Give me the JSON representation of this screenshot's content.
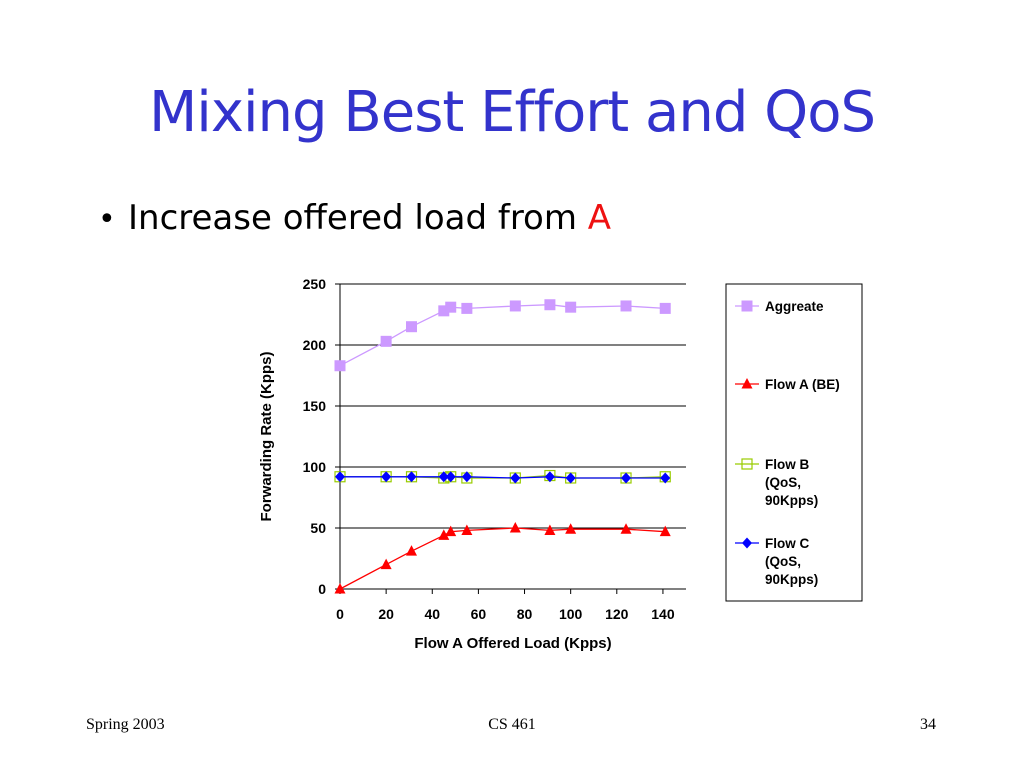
{
  "slide": {
    "title": "Mixing Best Effort and QoS",
    "bullet_text": "Increase offered load from ",
    "bullet_accent": "A",
    "bullet_symbol": "•",
    "accent_color": "#ee1111",
    "title_color": "#3333cc"
  },
  "footer": {
    "left": "Spring 2003",
    "center": "CS 461",
    "right": "34"
  },
  "chart_data": {
    "type": "line",
    "xlabel": "Flow A Offered Load (Kpps)",
    "ylabel": "Forwarding Rate (Kpps)",
    "xlim": [
      0,
      150
    ],
    "ylim": [
      0,
      250
    ],
    "xticks": [
      "0",
      "20",
      "40",
      "60",
      "80",
      "100",
      "120",
      "140"
    ],
    "yticks": [
      "0",
      "50",
      "100",
      "150",
      "200",
      "250"
    ],
    "grid": "horizontal",
    "legend_position": "right",
    "series": [
      {
        "name": "Aggreate",
        "marker": "square",
        "color": "#cc99ff",
        "x": [
          0,
          20,
          31,
          45,
          48,
          55,
          76,
          91,
          100,
          124,
          141
        ],
        "y": [
          183,
          203,
          215,
          228,
          231,
          230,
          232,
          233,
          231,
          232,
          230
        ]
      },
      {
        "name": "Flow A (BE)",
        "marker": "triangle",
        "color": "#ff0000",
        "x": [
          0,
          20,
          31,
          45,
          48,
          55,
          76,
          91,
          100,
          124,
          141
        ],
        "y": [
          0,
          20,
          31,
          44,
          47,
          48,
          50,
          48,
          49,
          49,
          47
        ]
      },
      {
        "name": "Flow B\n(QoS,\n90Kpps)",
        "marker": "hollow-square",
        "color": "#99cc00",
        "x": [
          0,
          20,
          31,
          45,
          48,
          55,
          76,
          91,
          100,
          124,
          141
        ],
        "y": [
          92,
          92,
          92,
          91,
          92,
          91,
          91,
          93,
          91,
          91,
          92
        ]
      },
      {
        "name": "Flow C\n(QoS,\n90Kpps)",
        "marker": "diamond",
        "color": "#0000ff",
        "x": [
          0,
          20,
          31,
          45,
          48,
          55,
          76,
          91,
          100,
          124,
          141
        ],
        "y": [
          92,
          92,
          92,
          92,
          92,
          92,
          91,
          92,
          91,
          91,
          91
        ]
      }
    ]
  }
}
